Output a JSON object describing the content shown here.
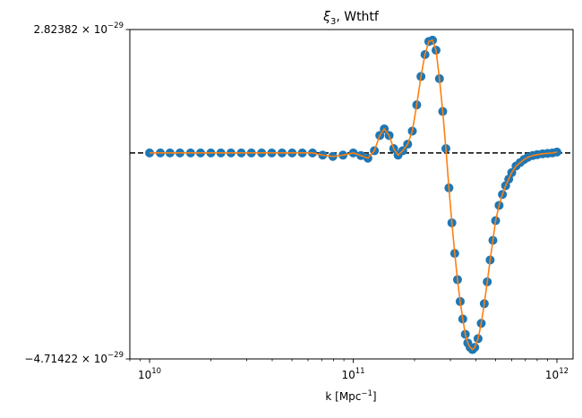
{
  "chart_data": {
    "type": "line",
    "title_main": "ξ",
    "title_sub": "3",
    "title_rest": ", Wthtf",
    "xlabel_main": "k [Mpc",
    "xlabel_sup": "−1",
    "xlabel_end": "]",
    "xscale": "log",
    "xlim": [
      8000000000.0,
      1200000000000.0
    ],
    "ylim": [
      -4.71422e-29,
      2.82382e-29
    ],
    "x_ticks": [
      {
        "value": 10000000000.0,
        "base": "10",
        "exp": "10"
      },
      {
        "value": 100000000000.0,
        "base": "10",
        "exp": "11"
      },
      {
        "value": 1000000000000.0,
        "base": "10",
        "exp": "12"
      }
    ],
    "y_ticks": [
      {
        "value": 2.82382e-29,
        "mantissa": "2.82382",
        "times": " × 10",
        "exp": "−29"
      },
      {
        "value": -4.71422e-29,
        "mantissa": "−4.71422",
        "times": " × 10",
        "exp": "−29"
      }
    ],
    "reference_line": {
      "y": 0,
      "style": "dashed",
      "color": "#000000"
    },
    "grid": false,
    "series": [
      {
        "kind": "scatter",
        "color": "#1f77b4",
        "x": [
          10000000000.0,
          11300000000.0,
          12600000000.0,
          14100000000.0,
          15900000000.0,
          17800000000.0,
          20000000000.0,
          22400000000.0,
          25100000000.0,
          28200000000.0,
          31600000000.0,
          35500000000.0,
          39800000000.0,
          44700000000.0,
          50100000000.0,
          56200000000.0,
          63100000000.0,
          70800000000.0,
          79400000000.0,
          89100000000.0,
          100000000000.0,
          109000000000.0,
          118000000000.0,
          127000000000.0,
          135000000000.0,
          142000000000.0,
          150000000000.0,
          158000000000.0,
          166000000000.0,
          175000000000.0,
          185000000000.0,
          195000000000.0,
          205000000000.0,
          215000000000.0,
          225000000000.0,
          235000000000.0,
          245000000000.0,
          255000000000.0,
          265000000000.0,
          275000000000.0,
          285000000000.0,
          295000000000.0,
          305000000000.0,
          315000000000.0,
          325000000000.0,
          335000000000.0,
          345000000000.0,
          355000000000.0,
          365000000000.0,
          375000000000.0,
          385000000000.0,
          395000000000.0,
          410000000000.0,
          425000000000.0,
          440000000000.0,
          455000000000.0,
          470000000000.0,
          485000000000.0,
          500000000000.0,
          520000000000.0,
          540000000000.0,
          560000000000.0,
          580000000000.0,
          600000000000.0,
          630000000000.0,
          660000000000.0,
          690000000000.0,
          720000000000.0,
          760000000000.0,
          800000000000.0,
          850000000000.0,
          900000000000.0,
          950000000000.0,
          1000000000000.0
        ],
        "y": [
          0,
          0,
          0,
          0,
          0,
          0,
          0,
          0,
          0,
          0,
          0,
          0,
          0,
          0,
          0,
          0,
          0,
          -5e-31,
          -8e-31,
          -5e-31,
          0,
          -6e-31,
          -1.2e-30,
          5e-31,
          4e-30,
          5.5e-30,
          4e-30,
          1e-30,
          -5e-31,
          5e-31,
          2e-30,
          5e-30,
          1.1e-29,
          1.75e-29,
          2.25e-29,
          2.55e-29,
          2.58e-29,
          2.35e-29,
          1.7e-29,
          9.5e-30,
          1e-30,
          -8e-30,
          -1.6e-29,
          -2.3e-29,
          -2.9e-29,
          -3.4e-29,
          -3.8e-29,
          -4.15e-29,
          -4.35e-29,
          -4.45e-29,
          -4.5e-29,
          -4.45e-29,
          -4.25e-29,
          -3.9e-29,
          -3.45e-29,
          -2.95e-29,
          -2.45e-29,
          -2e-29,
          -1.55e-29,
          -1.2e-29,
          -9.5e-30,
          -7.5e-30,
          -6e-30,
          -4.5e-30,
          -3e-30,
          -2.2e-30,
          -1.5e-30,
          -1e-30,
          -6e-31,
          -4e-31,
          -2e-31,
          -1e-31,
          0,
          2e-31
        ]
      },
      {
        "kind": "line",
        "color": "#ff7f0e"
      }
    ]
  }
}
